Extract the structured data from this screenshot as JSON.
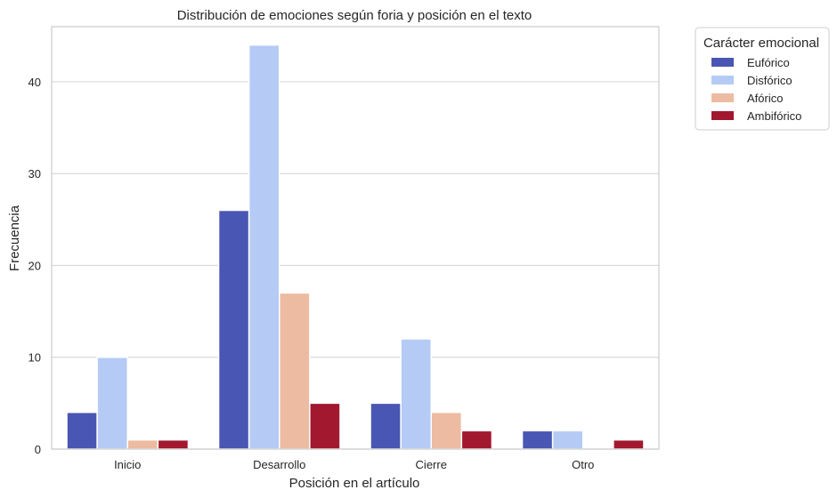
{
  "chart_data": {
    "type": "bar",
    "title": "Distribución de emociones según foria y posición en el texto",
    "xlabel": "Posición en el artículo",
    "ylabel": "Frecuencia",
    "categories": [
      "Inicio",
      "Desarrollo",
      "Cierre",
      "Otro"
    ],
    "ylim": [
      0,
      46
    ],
    "yticks": [
      0,
      10,
      20,
      30,
      40
    ],
    "grid": true,
    "legend": {
      "title": "Carácter emocional",
      "placement": "outside-top-right"
    },
    "series": [
      {
        "name": "Eufórico",
        "color": "#4a56b3",
        "values": [
          4,
          26,
          5,
          2
        ]
      },
      {
        "name": "Disfórico",
        "color": "#b5cbf5",
        "values": [
          10,
          44,
          12,
          2
        ]
      },
      {
        "name": "Afórico",
        "color": "#edbba1",
        "values": [
          1,
          17,
          4,
          0
        ]
      },
      {
        "name": "Ambifórico",
        "color": "#a2182f",
        "values": [
          1,
          5,
          2,
          1
        ]
      }
    ]
  }
}
